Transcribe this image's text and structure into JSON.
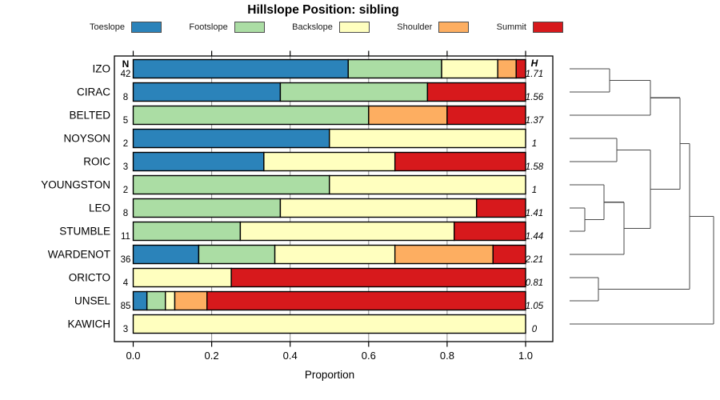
{
  "chart_data": {
    "type": "bar",
    "variant": "horizontal-stacked-proportion-with-dendrogram",
    "title": "Hillslope Position: sibling",
    "xlabel": "Proportion",
    "xlim": [
      0,
      1
    ],
    "xticks": [
      "0.0",
      "0.2",
      "0.4",
      "0.6",
      "0.8",
      "1.0"
    ],
    "n_header": "N",
    "h_header": "H",
    "legend": [
      {
        "label": "Toeslope",
        "color": "#2B83BA"
      },
      {
        "label": "Footslope",
        "color": "#ABDDA4"
      },
      {
        "label": "Backslope",
        "color": "#FFFFBF"
      },
      {
        "label": "Shoulder",
        "color": "#FDAE61"
      },
      {
        "label": "Summit",
        "color": "#D7191C"
      }
    ],
    "rows": [
      {
        "name": "IZO",
        "n": "42",
        "h": "1.71",
        "proportions": [
          0.548,
          0.238,
          0.143,
          0.047,
          0.024
        ]
      },
      {
        "name": "CIRAC",
        "n": "8",
        "h": "1.56",
        "proportions": [
          0.375,
          0.375,
          0,
          0,
          0.25
        ]
      },
      {
        "name": "BELTED",
        "n": "5",
        "h": "1.37",
        "proportions": [
          0,
          0.6,
          0,
          0.2,
          0.2
        ]
      },
      {
        "name": "NOYSON",
        "n": "2",
        "h": "1",
        "proportions": [
          0.5,
          0,
          0.5,
          0,
          0
        ]
      },
      {
        "name": "ROIC",
        "n": "3",
        "h": "1.58",
        "proportions": [
          0.333,
          0,
          0.334,
          0,
          0.333
        ]
      },
      {
        "name": "YOUNGSTON",
        "n": "2",
        "h": "1",
        "proportions": [
          0,
          0.5,
          0.5,
          0,
          0
        ]
      },
      {
        "name": "LEO",
        "n": "8",
        "h": "1.41",
        "proportions": [
          0,
          0.375,
          0.5,
          0,
          0.125
        ]
      },
      {
        "name": "STUMBLE",
        "n": "11",
        "h": "1.44",
        "proportions": [
          0,
          0.273,
          0.545,
          0,
          0.182
        ]
      },
      {
        "name": "WARDENOT",
        "n": "36",
        "h": "2.21",
        "proportions": [
          0.167,
          0.194,
          0.306,
          0.25,
          0.083
        ]
      },
      {
        "name": "ORICTO",
        "n": "4",
        "h": "0.81",
        "proportions": [
          0,
          0,
          0.25,
          0,
          0.75
        ]
      },
      {
        "name": "UNSEL",
        "n": "85",
        "h": "1.05",
        "proportions": [
          0.035,
          0.047,
          0.024,
          0.082,
          0.812
        ]
      },
      {
        "name": "KAWICH",
        "n": "3",
        "h": "0",
        "proportions": [
          0,
          0,
          1,
          0,
          0
        ]
      }
    ],
    "dendrogram": {
      "leaf_order": [
        "IZO",
        "CIRAC",
        "BELTED",
        "NOYSON",
        "ROIC",
        "YOUNGSTON",
        "LEO",
        "STUMBLE",
        "WARDENOT",
        "ORICTO",
        "UNSEL",
        "KAWICH"
      ],
      "line_color": "#4a4a4a",
      "segments": [
        [
          712,
          86,
          762,
          86
        ],
        [
          712,
          115,
          762,
          115
        ],
        [
          762,
          86,
          762,
          115
        ],
        [
          762,
          100.5,
          813,
          100.5
        ],
        [
          712,
          144,
          813,
          144
        ],
        [
          813,
          100.5,
          813,
          144
        ],
        [
          813,
          122.3,
          850,
          122.3
        ],
        [
          712,
          173,
          771,
          173
        ],
        [
          712,
          202,
          771,
          202
        ],
        [
          771,
          173,
          771,
          202
        ],
        [
          771,
          187.5,
          813,
          187.5
        ],
        [
          712,
          231,
          755,
          231
        ],
        [
          712,
          260,
          731,
          260
        ],
        [
          712,
          289,
          731,
          289
        ],
        [
          731,
          260,
          731,
          289
        ],
        [
          731,
          274.5,
          755,
          274.5
        ],
        [
          755,
          231,
          755,
          274.5
        ],
        [
          755,
          252.8,
          780,
          252.8
        ],
        [
          712,
          318,
          780,
          318
        ],
        [
          780,
          252.8,
          780,
          318
        ],
        [
          780,
          285.4,
          813,
          285.4
        ],
        [
          813,
          187.5,
          813,
          285.4
        ],
        [
          813,
          236.5,
          850,
          236.5
        ],
        [
          850,
          122.3,
          850,
          236.5
        ],
        [
          850,
          179.4,
          862,
          179.4
        ],
        [
          712,
          347,
          748,
          347
        ],
        [
          712,
          376,
          748,
          376
        ],
        [
          748,
          347,
          748,
          376
        ],
        [
          748,
          361.5,
          862,
          361.5
        ],
        [
          862,
          179.4,
          862,
          361.5
        ],
        [
          862,
          270.5,
          892,
          270.5
        ],
        [
          712,
          405,
          892,
          405
        ],
        [
          892,
          270.5,
          892,
          405
        ]
      ]
    },
    "layout_hints": {
      "grid": "vertical at 0.2 steps",
      "legend_position": "top",
      "h_is_shannon_entropy_bits": true
    }
  }
}
